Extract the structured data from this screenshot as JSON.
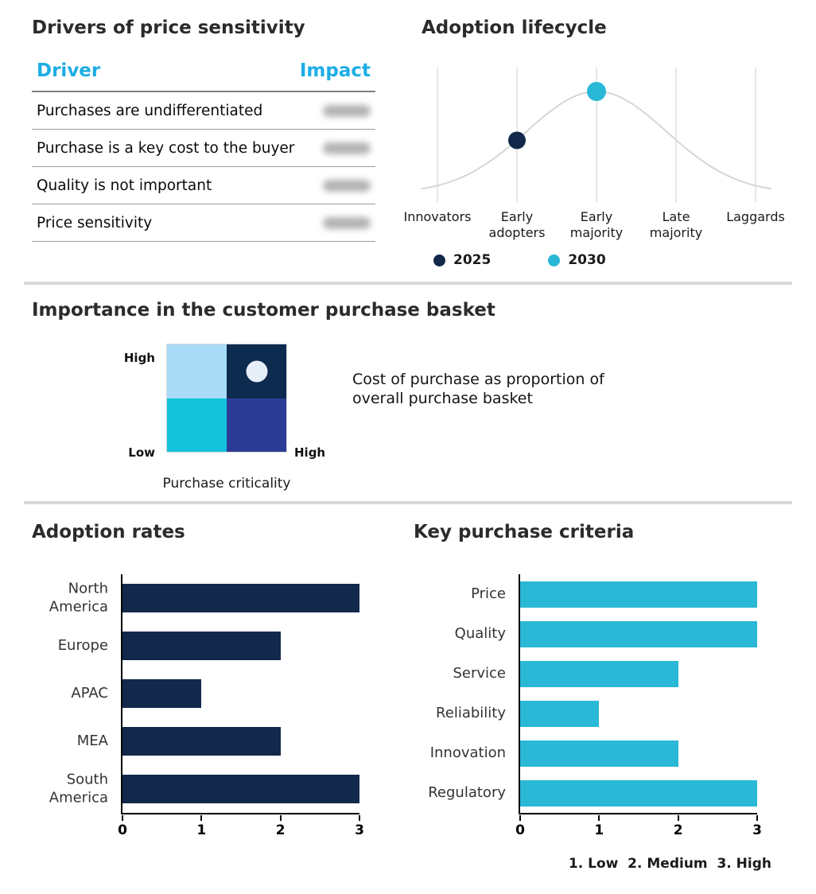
{
  "colors": {
    "navy": "#12294B",
    "cyan": "#29B8D5",
    "header_cyan": "#1CADE4",
    "quad_sky": "#A9DBF6",
    "quad_navy": "#0D2A4F",
    "quad_cyan": "#12C2D9",
    "quad_indigo": "#2C3C94",
    "marker_light": "#E6EEF8",
    "curve_gray": "#D6D6D6",
    "grid_gray": "#DADADA",
    "divider_gray": "#D9D9D9",
    "blur_blob": "#B3B3B3"
  },
  "chart_data": [
    {
      "id": "adoption_lifecycle",
      "type": "line",
      "title": "Adoption lifecycle",
      "categories": [
        "Innovators",
        "Early adopters",
        "Early majority",
        "Late majority",
        "Laggards"
      ],
      "curve": {
        "shape": "bell",
        "peak_category": "Early majority",
        "color": "#D6D6D6"
      },
      "points": [
        {
          "name": "2025",
          "category": "Early adopters",
          "category_index": 1,
          "height_frac": 0.52,
          "color": "#12294B",
          "r": 11
        },
        {
          "name": "2030",
          "category": "Early majority",
          "category_index": 2,
          "height_frac": 1.0,
          "color": "#29B8D5",
          "r": 12
        }
      ],
      "legend": [
        "2025",
        "2030"
      ],
      "legend_position": "bottom",
      "grid": "vertical gridline at each category"
    },
    {
      "id": "purchase_basket_matrix",
      "type": "heatmap",
      "title": "Importance in the customer purchase basket",
      "x_axis": {
        "label": "Purchase criticality",
        "high": "High"
      },
      "y_axis": {
        "high": "High",
        "low": "Low"
      },
      "cells": [
        [
          "#A9DBF6",
          "#0D2A4F"
        ],
        [
          "#12C2D9",
          "#2C3C94"
        ]
      ],
      "marker": {
        "row": 0,
        "col": 1,
        "color": "#E6EEF8"
      },
      "annotation": "Cost of purchase as proportion of overall purchase basket"
    },
    {
      "id": "adoption_rates",
      "type": "bar",
      "orientation": "horizontal",
      "title": "Adoption rates",
      "categories": [
        "North America",
        "Europe",
        "APAC",
        "MEA",
        "South America"
      ],
      "values": [
        3,
        2,
        1,
        2,
        3
      ],
      "xlim": [
        0,
        3
      ],
      "xticks": [
        0,
        1,
        2,
        3
      ],
      "bar_color": "#12294B"
    },
    {
      "id": "key_purchase_criteria",
      "type": "bar",
      "orientation": "horizontal",
      "title": "Key purchase criteria",
      "categories": [
        "Price",
        "Quality",
        "Service",
        "Reliability",
        "Innovation",
        "Regulatory"
      ],
      "values": [
        3,
        3,
        2,
        1,
        2,
        3
      ],
      "xlim": [
        0,
        3
      ],
      "xticks": [
        0,
        1,
        2,
        3
      ],
      "bar_color": "#29B8D5",
      "footnote": "1. Low  2. Medium  3. High"
    },
    {
      "id": "drivers_of_price_sensitivity",
      "type": "table",
      "title": "Drivers of price sensitivity",
      "headers": [
        "Driver",
        "Impact"
      ],
      "rows": [
        {
          "driver": "Purchases are undifferentiated",
          "impact": null
        },
        {
          "driver": "Purchase is a key cost to the buyer",
          "impact": null
        },
        {
          "driver": "Quality is not important",
          "impact": null
        },
        {
          "driver": "Price sensitivity",
          "impact": null
        }
      ],
      "impact_rendering": "blurred / illegible in source"
    }
  ]
}
